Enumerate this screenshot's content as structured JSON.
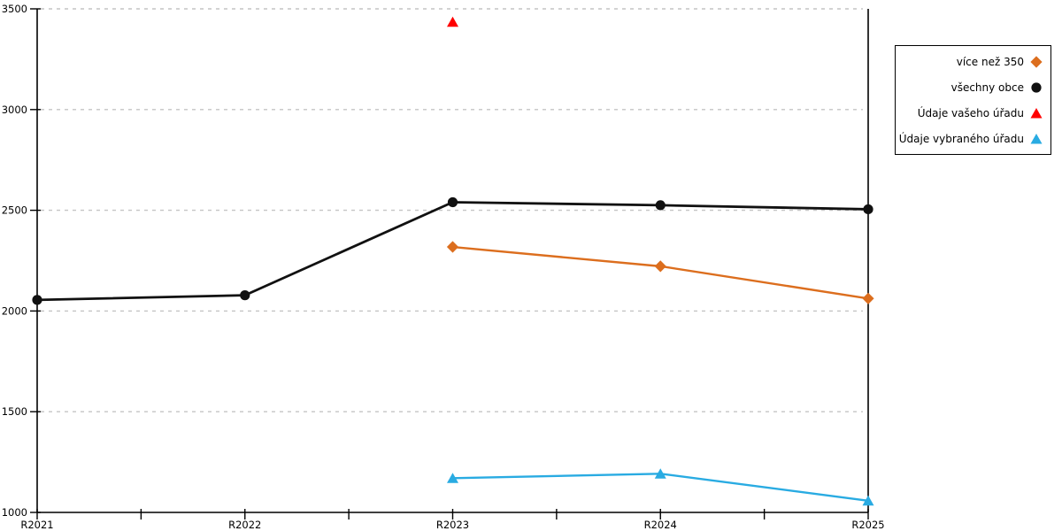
{
  "chart_data": {
    "type": "line",
    "title": "",
    "xlabel": "",
    "ylabel": "",
    "categories": [
      "R2021",
      "R2022",
      "R2023",
      "R2024",
      "R2025"
    ],
    "ylim": [
      1000,
      3500
    ],
    "yticks": [
      1000,
      1500,
      2000,
      2500,
      3000,
      3500
    ],
    "grid": "horizontal dashed, minor unlabeled x-ticks between years",
    "legend_position": "outside-right",
    "colors": {
      "axis": "#000000",
      "gridline": "#c4c4c4",
      "background": "#ffffff"
    },
    "series": [
      {
        "name": "více než 350",
        "color": "#dc6e1e",
        "marker": "diamond",
        "line": true,
        "values": [
          null,
          null,
          2318,
          2222,
          2062
        ]
      },
      {
        "name": "všechny obce",
        "color": "#111111",
        "marker": "circle",
        "line": true,
        "values": [
          2055,
          2078,
          2540,
          2525,
          2505
        ]
      },
      {
        "name": "Údaje vašeho úřadu",
        "color": "#ff0000",
        "marker": "triangle",
        "line": false,
        "values": [
          null,
          null,
          3435,
          null,
          null
        ]
      },
      {
        "name": "Údaje vybraného úřadu",
        "color": "#29abe2",
        "marker": "triangle",
        "line": true,
        "values": [
          null,
          null,
          1170,
          1192,
          1058
        ]
      }
    ]
  }
}
